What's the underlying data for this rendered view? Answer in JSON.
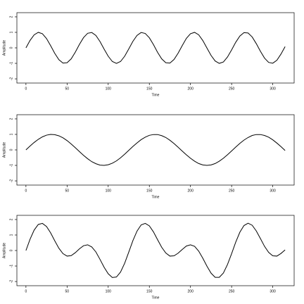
{
  "chart_data": [
    {
      "type": "line",
      "xlabel": "Time",
      "ylabel": "Amplitude",
      "color": "#000000",
      "xlim": [
        -11,
        326
      ],
      "ylim": [
        -2.27,
        2.27
      ],
      "xticks": [
        0,
        50,
        100,
        150,
        200,
        250,
        300
      ],
      "yticks": [
        -2,
        -1,
        0,
        1,
        2
      ],
      "x": [
        0,
        5,
        10,
        15,
        20,
        25,
        30,
        35,
        40,
        45,
        50,
        55,
        60,
        65,
        70,
        75,
        80,
        85,
        90,
        95,
        100,
        105,
        110,
        115,
        120,
        125,
        130,
        135,
        140,
        145,
        150,
        155,
        160,
        165,
        170,
        175,
        180,
        185,
        190,
        195,
        200,
        205,
        210,
        215,
        220,
        225,
        230,
        235,
        240,
        245,
        250,
        255,
        260,
        265,
        270,
        275,
        280,
        285,
        290,
        295,
        300,
        305,
        310,
        315
      ],
      "values": [
        0,
        0.48,
        0.84,
        1.0,
        0.91,
        0.6,
        0.14,
        -0.35,
        -0.76,
        -0.98,
        -0.96,
        -0.71,
        -0.28,
        0.22,
        0.66,
        0.94,
        0.99,
        0.8,
        0.41,
        -0.08,
        -0.54,
        -0.88,
        -1.0,
        -0.88,
        -0.54,
        -0.07,
        0.42,
        0.8,
        0.99,
        0.93,
        0.65,
        0.21,
        -0.29,
        -0.71,
        -0.96,
        -0.98,
        -0.75,
        -0.34,
        0.15,
        0.61,
        0.91,
        1.0,
        0.84,
        0.47,
        -0.01,
        -0.49,
        -0.85,
        -1.0,
        -0.91,
        -0.59,
        -0.13,
        0.36,
        0.76,
        0.98,
        0.96,
        0.7,
        0.27,
        -0.22,
        -0.66,
        -0.94,
        -0.99,
        -0.8,
        -0.4,
        0.08
      ]
    },
    {
      "type": "line",
      "xlabel": "Time",
      "ylabel": "Amplitude",
      "color": "#000000",
      "xlim": [
        -11,
        326
      ],
      "ylim": [
        -2.27,
        2.27
      ],
      "xticks": [
        0,
        50,
        100,
        150,
        200,
        250,
        300
      ],
      "yticks": [
        -2,
        -1,
        0,
        1,
        2
      ],
      "x": [
        0,
        5,
        10,
        15,
        20,
        25,
        30,
        35,
        40,
        45,
        50,
        55,
        60,
        65,
        70,
        75,
        80,
        85,
        90,
        95,
        100,
        105,
        110,
        115,
        120,
        125,
        130,
        135,
        140,
        145,
        150,
        155,
        160,
        165,
        170,
        175,
        180,
        185,
        190,
        195,
        200,
        205,
        210,
        215,
        220,
        225,
        230,
        235,
        240,
        245,
        250,
        255,
        260,
        265,
        270,
        275,
        280,
        285,
        290,
        295,
        300,
        305,
        310,
        315
      ],
      "values": [
        0,
        0.25,
        0.48,
        0.68,
        0.84,
        0.95,
        1.0,
        0.98,
        0.91,
        0.78,
        0.6,
        0.38,
        0.14,
        -0.11,
        -0.35,
        -0.57,
        -0.76,
        -0.89,
        -0.98,
        -1.0,
        -0.96,
        -0.86,
        -0.71,
        -0.51,
        -0.28,
        -0.03,
        0.22,
        0.45,
        0.66,
        0.82,
        0.94,
        0.99,
        0.99,
        0.92,
        0.8,
        0.62,
        0.41,
        0.17,
        -0.08,
        -0.32,
        -0.54,
        -0.73,
        -0.88,
        -0.97,
        -1.0,
        -0.97,
        -0.88,
        -0.73,
        -0.54,
        -0.31,
        -0.07,
        0.18,
        0.42,
        0.63,
        0.8,
        0.93,
        0.99,
        0.99,
        0.93,
        0.82,
        0.65,
        0.44,
        0.21,
        -0.04
      ]
    },
    {
      "type": "line",
      "xlabel": "Time",
      "ylabel": "Amplitude",
      "color": "#000000",
      "xlim": [
        -11,
        326
      ],
      "ylim": [
        -2.27,
        2.27
      ],
      "xticks": [
        0,
        50,
        100,
        150,
        200,
        250,
        300
      ],
      "yticks": [
        -2,
        -1,
        0,
        1,
        2
      ],
      "x": [
        0,
        5,
        10,
        15,
        20,
        25,
        30,
        35,
        40,
        45,
        50,
        55,
        60,
        65,
        70,
        75,
        80,
        85,
        90,
        95,
        100,
        105,
        110,
        115,
        120,
        125,
        130,
        135,
        140,
        145,
        150,
        155,
        160,
        165,
        170,
        175,
        180,
        185,
        190,
        195,
        200,
        205,
        210,
        215,
        220,
        225,
        230,
        235,
        240,
        245,
        250,
        255,
        260,
        265,
        270,
        275,
        280,
        285,
        290,
        295,
        300,
        305,
        310,
        315
      ],
      "values": [
        0,
        0.73,
        1.32,
        1.68,
        1.75,
        1.55,
        1.14,
        0.63,
        0.15,
        -0.2,
        -0.36,
        -0.33,
        -0.14,
        0.11,
        0.31,
        0.37,
        0.23,
        -0.09,
        -0.57,
        -1.08,
        -1.5,
        -1.74,
        -1.71,
        -1.39,
        -0.82,
        -0.1,
        0.64,
        1.25,
        1.65,
        1.75,
        1.59,
        1.2,
        0.7,
        0.21,
        -0.16,
        -0.36,
        -0.34,
        -0.17,
        0.07,
        0.29,
        0.37,
        0.27,
        -0.04,
        -0.5,
        -1.01,
        -1.46,
        -1.73,
        -1.73,
        -1.45,
        -0.9,
        -0.2,
        0.54,
        1.18,
        1.61,
        1.76,
        1.63,
        1.26,
        0.77,
        0.27,
        -0.12,
        -0.34,
        -0.36,
        -0.19,
        0.04
      ]
    }
  ]
}
